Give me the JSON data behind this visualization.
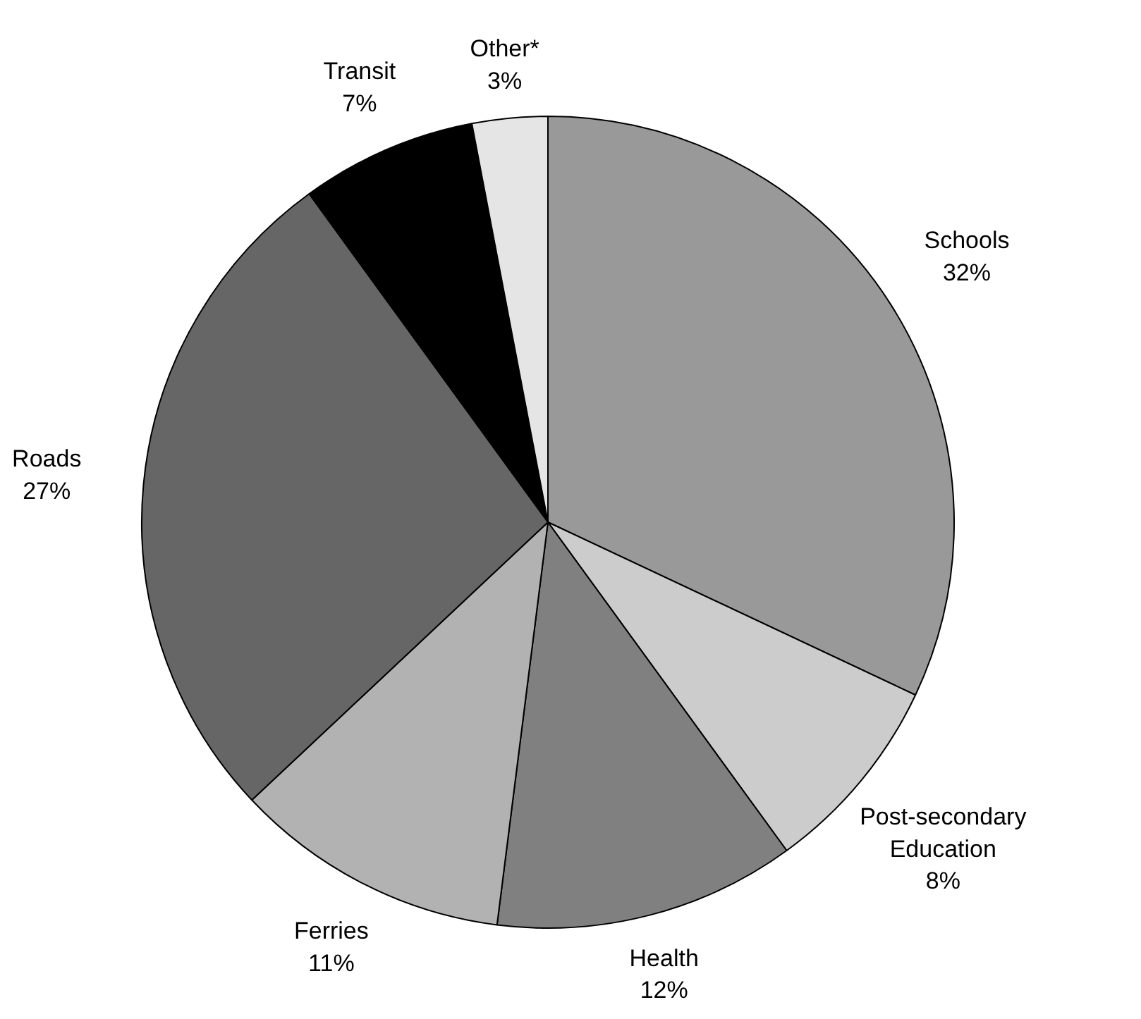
{
  "chart_data": {
    "type": "pie",
    "categories": [
      "Schools",
      "Post-secondary\nEducation",
      "Health",
      "Ferries",
      "Roads",
      "Transit",
      "Other*"
    ],
    "values": [
      32,
      8,
      12,
      11,
      27,
      7,
      3
    ],
    "value_labels": [
      "32%",
      "8%",
      "12%",
      "11%",
      "27%",
      "7%",
      "3%"
    ],
    "colors": [
      "#999999",
      "#cccccc",
      "#808080",
      "#b2b2b2",
      "#666666",
      "#000000",
      "#e5e5e5"
    ]
  }
}
